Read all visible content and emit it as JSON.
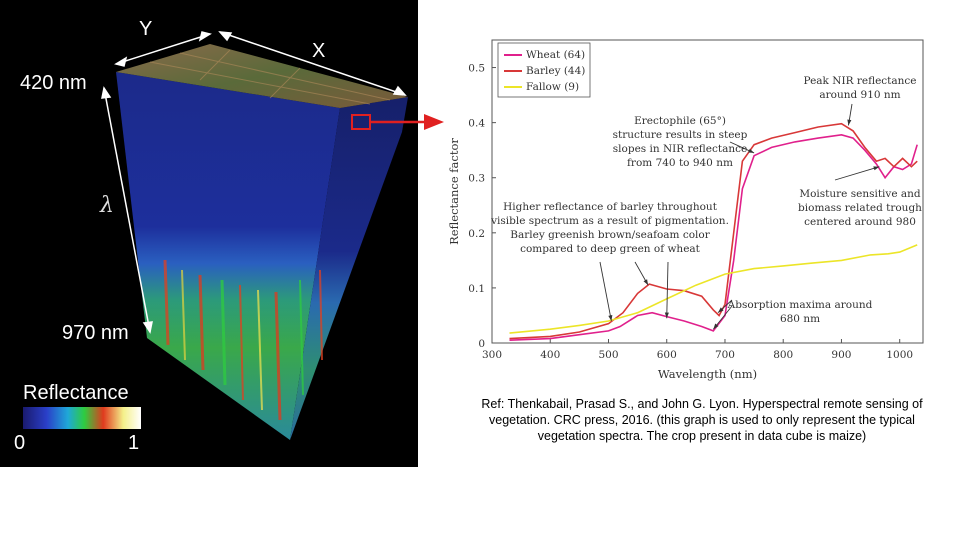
{
  "cube": {
    "label_y": "Y",
    "label_x": "X",
    "label_start": "420 nm",
    "label_end": "970 nm",
    "label_lambda": "λ",
    "colorbar_title": "Reflectance",
    "colorbar_min": "0",
    "colorbar_max": "1",
    "colorbar_colors": [
      "#1a1a6e",
      "#2a3fc8",
      "#1fa8d8",
      "#2ecc40",
      "#e03a1e",
      "#f4f08a",
      "#ffffff"
    ]
  },
  "chart_data": {
    "type": "line",
    "xlabel": "Wavelength (nm)",
    "ylabel": "Reflectance factor",
    "xlim": [
      300,
      1040
    ],
    "ylim": [
      0,
      0.55
    ],
    "xticks": [
      300,
      400,
      500,
      600,
      700,
      800,
      900,
      1000
    ],
    "yticks": [
      0,
      0.1,
      0.2,
      0.3,
      0.4,
      0.5
    ],
    "legend_position": "top-left",
    "series": [
      {
        "name": "Wheat (64)",
        "color": "#e0208c",
        "x": [
          330,
          400,
          450,
          500,
          520,
          550,
          575,
          600,
          630,
          660,
          680,
          700,
          715,
          730,
          750,
          780,
          820,
          860,
          900,
          920,
          940,
          960,
          975,
          990,
          1005,
          1020,
          1030
        ],
        "y": [
          0.005,
          0.008,
          0.015,
          0.022,
          0.03,
          0.05,
          0.055,
          0.048,
          0.04,
          0.03,
          0.022,
          0.05,
          0.15,
          0.28,
          0.34,
          0.355,
          0.365,
          0.372,
          0.378,
          0.372,
          0.35,
          0.325,
          0.3,
          0.32,
          0.315,
          0.325,
          0.36
        ]
      },
      {
        "name": "Barley (44)",
        "color": "#d83838",
        "x": [
          330,
          400,
          450,
          500,
          525,
          550,
          570,
          600,
          630,
          660,
          680,
          690,
          700,
          715,
          730,
          750,
          780,
          820,
          860,
          900,
          920,
          940,
          960,
          975,
          990,
          1005,
          1020,
          1030
        ],
        "y": [
          0.008,
          0.012,
          0.02,
          0.035,
          0.055,
          0.09,
          0.107,
          0.098,
          0.095,
          0.085,
          0.06,
          0.05,
          0.07,
          0.2,
          0.33,
          0.36,
          0.372,
          0.382,
          0.392,
          0.398,
          0.385,
          0.355,
          0.33,
          0.335,
          0.32,
          0.335,
          0.32,
          0.33
        ]
      },
      {
        "name": "Fallow (9)",
        "color": "#ece528",
        "x": [
          330,
          400,
          450,
          500,
          550,
          600,
          650,
          700,
          750,
          800,
          850,
          900,
          950,
          980,
          1000,
          1030
        ],
        "y": [
          0.018,
          0.025,
          0.032,
          0.04,
          0.055,
          0.08,
          0.105,
          0.125,
          0.135,
          0.14,
          0.145,
          0.15,
          0.16,
          0.162,
          0.165,
          0.178
        ]
      }
    ],
    "annotations": [
      {
        "lines": [
          "Peak NIR reflectance",
          "around 910 nm"
        ]
      },
      {
        "lines": [
          "Erectophile (65°)",
          "structure results in steep",
          "slopes in NIR reflectance",
          "from 740 to 940 nm"
        ]
      },
      {
        "lines": [
          "Higher reflectance of barley throughout",
          "visible spectrum as a result of pigmentation.",
          "Barley greenish brown/seafoam color",
          "compared to deep green of wheat"
        ]
      },
      {
        "lines": [
          "Moisture sensitive and",
          "biomass related trough",
          "centered around 980"
        ]
      },
      {
        "lines": [
          "Absorption maxima around",
          "680 nm"
        ]
      }
    ]
  },
  "reference": "Ref: Thenkabail, Prasad S., and John G. Lyon. Hyperspectral remote sensing of vegetation. CRC press, 2016. (this graph is used to only represent the typical vegetation spectra. The crop present in data cube is maize)"
}
